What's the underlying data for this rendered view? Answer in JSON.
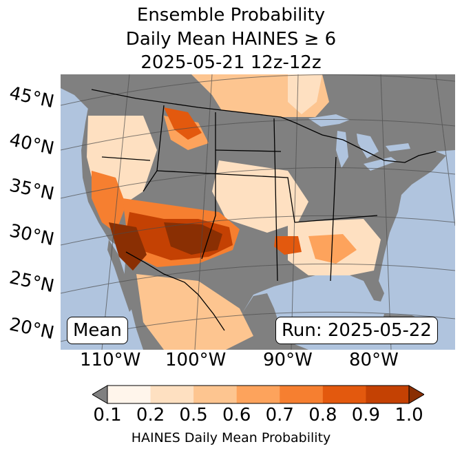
{
  "title": {
    "line1": "Ensemble Probability",
    "line2": "Daily Mean HAINES ≥ 6",
    "line3": "2025-05-21 12z-12z"
  },
  "map": {
    "latitude_labels": [
      "45°N",
      "40°N",
      "35°N",
      "30°N",
      "25°N",
      "20°N"
    ],
    "longitude_labels": [
      "110°W",
      "100°W",
      "90°W",
      "80°W"
    ],
    "mean_label": "Mean",
    "run_label": "Run: 2025-05-22",
    "colors": {
      "ocean": "#b0c4de",
      "no_data": "#808080",
      "low": "#fff5eb"
    }
  },
  "colorbar": {
    "ticks": [
      "0.1",
      "0.2",
      "0.5",
      "0.6",
      "0.7",
      "0.8",
      "0.9",
      "1.0"
    ],
    "colors": [
      "#fff5eb",
      "#fee0c1",
      "#fdc590",
      "#fda35c",
      "#f67f30",
      "#e3590e",
      "#c44103"
    ],
    "under_color": "#808080",
    "over_color": "#8a2f03",
    "label": "HAINES Daily Mean Probability"
  }
}
